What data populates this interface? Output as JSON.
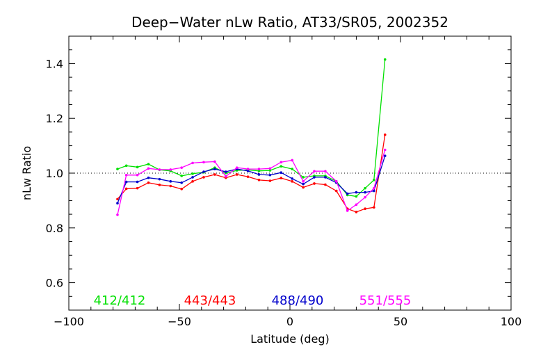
{
  "chart_data": {
    "type": "line",
    "title": "Deep−Water nLw Ratio, AT33/SR05, 2002352",
    "xlabel": "Latitude (deg)",
    "ylabel": "nLw Ratio",
    "xlim": [
      -100,
      100
    ],
    "ylim": [
      0.5,
      1.5
    ],
    "x_ticks": [
      -100,
      -50,
      0,
      50,
      100
    ],
    "x_tick_labels": [
      "−100",
      "−50",
      "0",
      "50",
      "100"
    ],
    "y_ticks": [
      0.6,
      0.8,
      1.0,
      1.2,
      1.4
    ],
    "y_tick_labels": [
      "0.6",
      "0.8",
      "1.0",
      "1.2",
      "1.4"
    ],
    "reference_line": {
      "y": 1.0,
      "style": "dotted"
    },
    "grid": false,
    "legend_placement": "bottom-inside",
    "series": [
      {
        "name": "412/412",
        "color": "#00e000",
        "x": [
          -78,
          -74,
          -69,
          -64,
          -59,
          -54,
          -49,
          -44,
          -39,
          -34,
          -29,
          -24,
          -19,
          -14,
          -9,
          -4,
          1,
          6,
          11,
          16,
          21,
          26,
          30,
          34,
          38,
          43
        ],
        "values": [
          1.015,
          1.027,
          1.022,
          1.033,
          1.012,
          1.008,
          0.99,
          0.998,
          1.003,
          1.02,
          1.0,
          1.01,
          1.012,
          1.008,
          1.01,
          1.025,
          1.015,
          0.985,
          0.99,
          0.99,
          0.97,
          0.92,
          0.915,
          0.945,
          0.975,
          1.415
        ]
      },
      {
        "name": "443/443",
        "color": "#ff0000",
        "x": [
          -78,
          -74,
          -69,
          -64,
          -59,
          -54,
          -49,
          -44,
          -39,
          -34,
          -29,
          -24,
          -19,
          -14,
          -9,
          -4,
          1,
          6,
          11,
          16,
          21,
          26,
          30,
          34,
          38,
          43
        ],
        "values": [
          0.905,
          0.943,
          0.945,
          0.965,
          0.957,
          0.953,
          0.942,
          0.97,
          0.985,
          0.995,
          0.983,
          0.995,
          0.987,
          0.975,
          0.972,
          0.982,
          0.97,
          0.948,
          0.962,
          0.958,
          0.935,
          0.87,
          0.858,
          0.87,
          0.875,
          1.14
        ]
      },
      {
        "name": "488/490",
        "color": "#0000cc",
        "x": [
          -78,
          -74,
          -69,
          -64,
          -59,
          -54,
          -49,
          -44,
          -39,
          -34,
          -29,
          -24,
          -19,
          -14,
          -9,
          -4,
          1,
          6,
          11,
          16,
          21,
          26,
          30,
          34,
          38,
          43
        ],
        "values": [
          0.89,
          0.968,
          0.968,
          0.983,
          0.978,
          0.97,
          0.965,
          0.985,
          1.005,
          1.015,
          1.005,
          1.015,
          1.008,
          0.995,
          0.993,
          1.002,
          0.98,
          0.96,
          0.985,
          0.985,
          0.965,
          0.925,
          0.93,
          0.93,
          0.935,
          1.063
        ]
      },
      {
        "name": "551/555",
        "color": "#ff00ff",
        "x": [
          -78,
          -74,
          -69,
          -64,
          -59,
          -54,
          -49,
          -44,
          -39,
          -34,
          -29,
          -24,
          -19,
          -14,
          -9,
          -4,
          1,
          6,
          11,
          16,
          21,
          26,
          30,
          34,
          38,
          43
        ],
        "values": [
          0.848,
          0.993,
          0.993,
          1.017,
          1.013,
          1.013,
          1.02,
          1.037,
          1.04,
          1.042,
          0.988,
          1.02,
          1.015,
          1.015,
          1.017,
          1.04,
          1.047,
          0.97,
          1.007,
          1.007,
          0.97,
          0.863,
          0.885,
          0.912,
          0.945,
          1.085
        ]
      }
    ]
  }
}
